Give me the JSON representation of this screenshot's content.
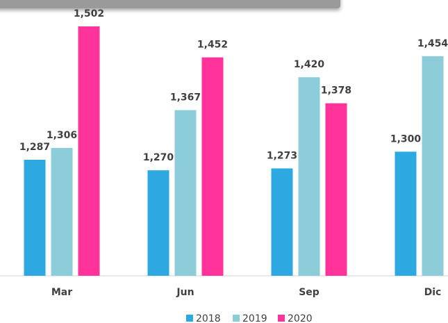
{
  "chart_data": {
    "type": "bar",
    "categories": [
      "Mar",
      "Jun",
      "Sep",
      "Dic"
    ],
    "series": [
      {
        "name": "2018",
        "color": "#2ea8e0",
        "values": [
          1287,
          1270,
          1273,
          1300
        ],
        "value_labels": [
          "1,287",
          "1,270",
          "1,273",
          "1,300"
        ]
      },
      {
        "name": "2019",
        "color": "#8ccdd9",
        "values": [
          1306,
          1367,
          1420,
          1454
        ],
        "value_labels": [
          "1,306",
          "1,367",
          "1,420",
          "1,454"
        ]
      },
      {
        "name": "2020",
        "color": "#ff3399",
        "values": [
          1502,
          1452,
          1378,
          null
        ],
        "value_labels": [
          "1,502",
          "1,452",
          "1,378",
          null
        ]
      }
    ],
    "ylim": [
      1100,
      1540
    ]
  }
}
